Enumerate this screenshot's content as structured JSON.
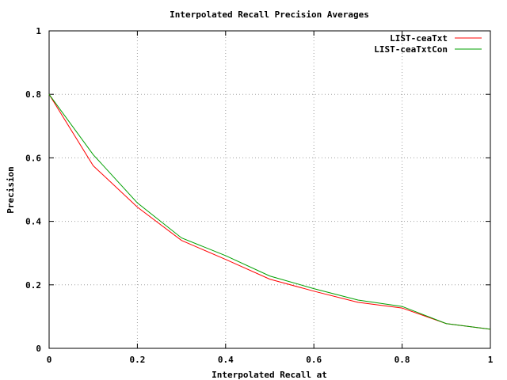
{
  "chart_data": {
    "type": "line",
    "title": "Interpolated Recall Precision Averages",
    "xlabel": "Interpolated Recall at",
    "ylabel": "Precision",
    "xlim": [
      0,
      1
    ],
    "ylim": [
      0,
      1
    ],
    "x_ticks": [
      "0",
      "0.2",
      "0.4",
      "0.6",
      "0.8",
      "1"
    ],
    "y_ticks": [
      "0",
      "0.2",
      "0.4",
      "0.6",
      "0.8",
      "1"
    ],
    "grid": true,
    "legend_position": "top-right",
    "x": [
      0,
      0.1,
      0.2,
      0.3,
      0.4,
      0.5,
      0.6,
      0.7,
      0.8,
      0.9,
      1.0
    ],
    "series": [
      {
        "name": "LIST-ceaTxt",
        "color": "#ff0000",
        "values": [
          0.8,
          0.575,
          0.445,
          0.34,
          0.28,
          0.218,
          0.18,
          0.145,
          0.127,
          0.078,
          0.06
        ]
      },
      {
        "name": "LIST-ceaTxtCon",
        "color": "#00a000",
        "values": [
          0.8,
          0.61,
          0.458,
          0.348,
          0.292,
          0.228,
          0.188,
          0.152,
          0.132,
          0.078,
          0.06
        ]
      }
    ]
  }
}
